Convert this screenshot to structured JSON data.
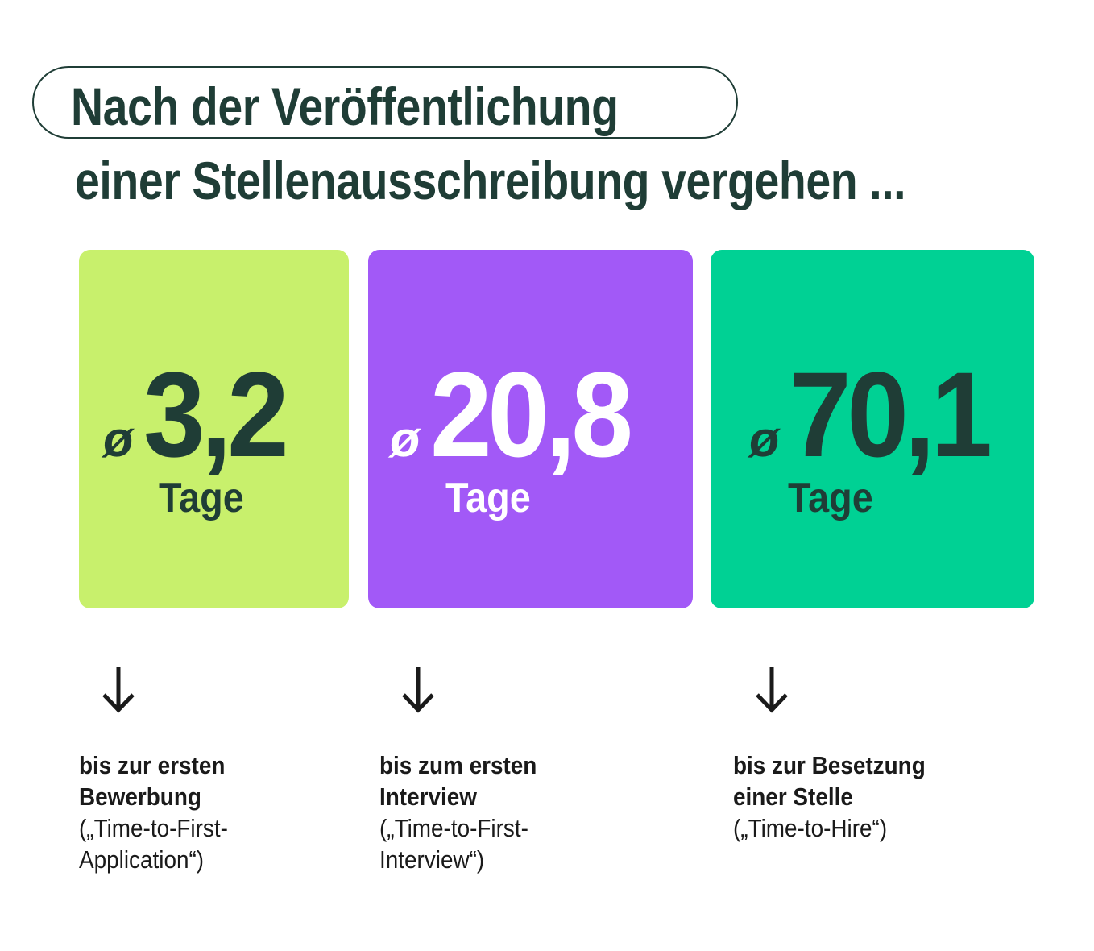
{
  "title": {
    "line1": "Nach der Veröffentlichung",
    "line2": "einer Stellenausschreibung vergehen ..."
  },
  "colors": {
    "text": "#1f3d36",
    "card1": "#c8f06c",
    "card2": "#a259f7",
    "card3": "#00d194"
  },
  "cards": [
    {
      "avg_symbol": "ø",
      "value": "3,2",
      "unit": "Tage",
      "desc_bold": [
        "bis zur ersten",
        "Bewerbung"
      ],
      "desc_normal": [
        "(„Time-to-First-",
        "Application“)"
      ]
    },
    {
      "avg_symbol": "ø",
      "value": "20,8",
      "unit": "Tage",
      "desc_bold": [
        "bis zum ersten",
        "Interview"
      ],
      "desc_normal": [
        "(„Time-to-First-",
        "Interview“)"
      ]
    },
    {
      "avg_symbol": "ø",
      "value": "70,1",
      "unit": "Tage",
      "desc_bold": [
        "bis zur Besetzung",
        "einer Stelle"
      ],
      "desc_normal": [
        "(„Time-to-Hire“)"
      ]
    }
  ],
  "icons": {
    "arrow": "arrow-down-icon"
  }
}
